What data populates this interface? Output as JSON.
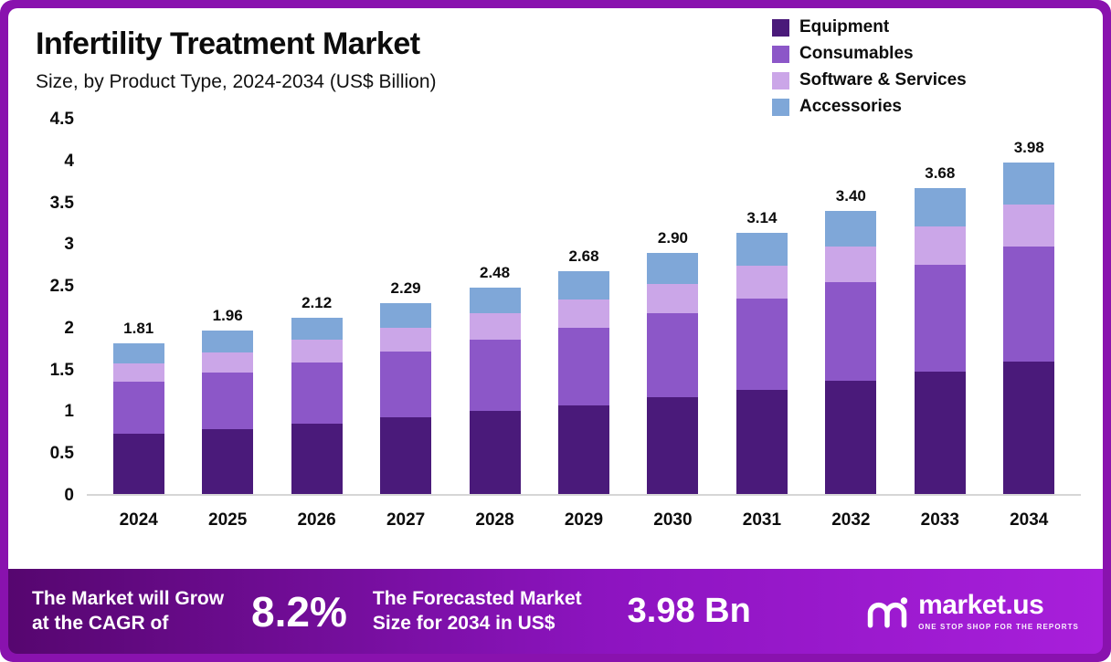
{
  "title": "Infertility Treatment Market",
  "subtitle": "Size, by Product Type, 2024-2034 (US$ Billion)",
  "legend": [
    {
      "label": "Equipment",
      "color": "#4a1a7a"
    },
    {
      "label": "Consumables",
      "color": "#8c57c8"
    },
    {
      "label": "Software & Services",
      "color": "#cba6e8"
    },
    {
      "label": "Accessories",
      "color": "#7fa7d8"
    }
  ],
  "chart_data": {
    "type": "bar",
    "stacked": true,
    "title": "Infertility Treatment Market Size, by Product Type, 2024-2034 (US$ Billion)",
    "categories": [
      "2024",
      "2025",
      "2026",
      "2027",
      "2028",
      "2029",
      "2030",
      "2031",
      "2032",
      "2033",
      "2034"
    ],
    "totals": [
      "1.81",
      "1.96",
      "2.12",
      "2.29",
      "2.48",
      "2.68",
      "2.90",
      "3.14",
      "3.40",
      "3.68",
      "3.98"
    ],
    "series": [
      {
        "name": "Equipment",
        "color": "#4a1a7a",
        "values": [
          0.72,
          0.78,
          0.85,
          0.92,
          1.0,
          1.07,
          1.16,
          1.25,
          1.36,
          1.47,
          1.59
        ]
      },
      {
        "name": "Consumables",
        "color": "#8c57c8",
        "values": [
          0.63,
          0.68,
          0.73,
          0.79,
          0.85,
          0.93,
          1.01,
          1.1,
          1.19,
          1.29,
          1.39
        ]
      },
      {
        "name": "Software & Services",
        "color": "#cba6e8",
        "values": [
          0.22,
          0.24,
          0.27,
          0.29,
          0.32,
          0.34,
          0.36,
          0.39,
          0.42,
          0.46,
          0.5
        ]
      },
      {
        "name": "Accessories",
        "color": "#7fa7d8",
        "values": [
          0.24,
          0.26,
          0.27,
          0.29,
          0.31,
          0.34,
          0.37,
          0.4,
          0.43,
          0.46,
          0.5
        ]
      }
    ],
    "ylim": [
      0,
      4.5
    ],
    "y_tick_labels": [
      "4.5",
      "4",
      "3.5",
      "3",
      "2.5",
      "2",
      "1.5",
      "1",
      "0.5",
      "0"
    ],
    "xlabel": "",
    "ylabel": "",
    "grid": false,
    "legend_position": "top-right"
  },
  "footer": {
    "grow_line1": "The Market will Grow",
    "grow_line2": "at the CAGR of",
    "cagr_value": "8.2%",
    "forecast_line1": "The Forecasted Market",
    "forecast_line2": "Size for 2034 in US$",
    "forecast_value": "3.98 Bn",
    "brand": "market.us",
    "tagline": "ONE STOP SHOP FOR THE REPORTS"
  },
  "colors": {
    "frame": "#8912ae",
    "banner_gradient_start": "#56066f",
    "banner_gradient_end": "#a81fdb"
  }
}
